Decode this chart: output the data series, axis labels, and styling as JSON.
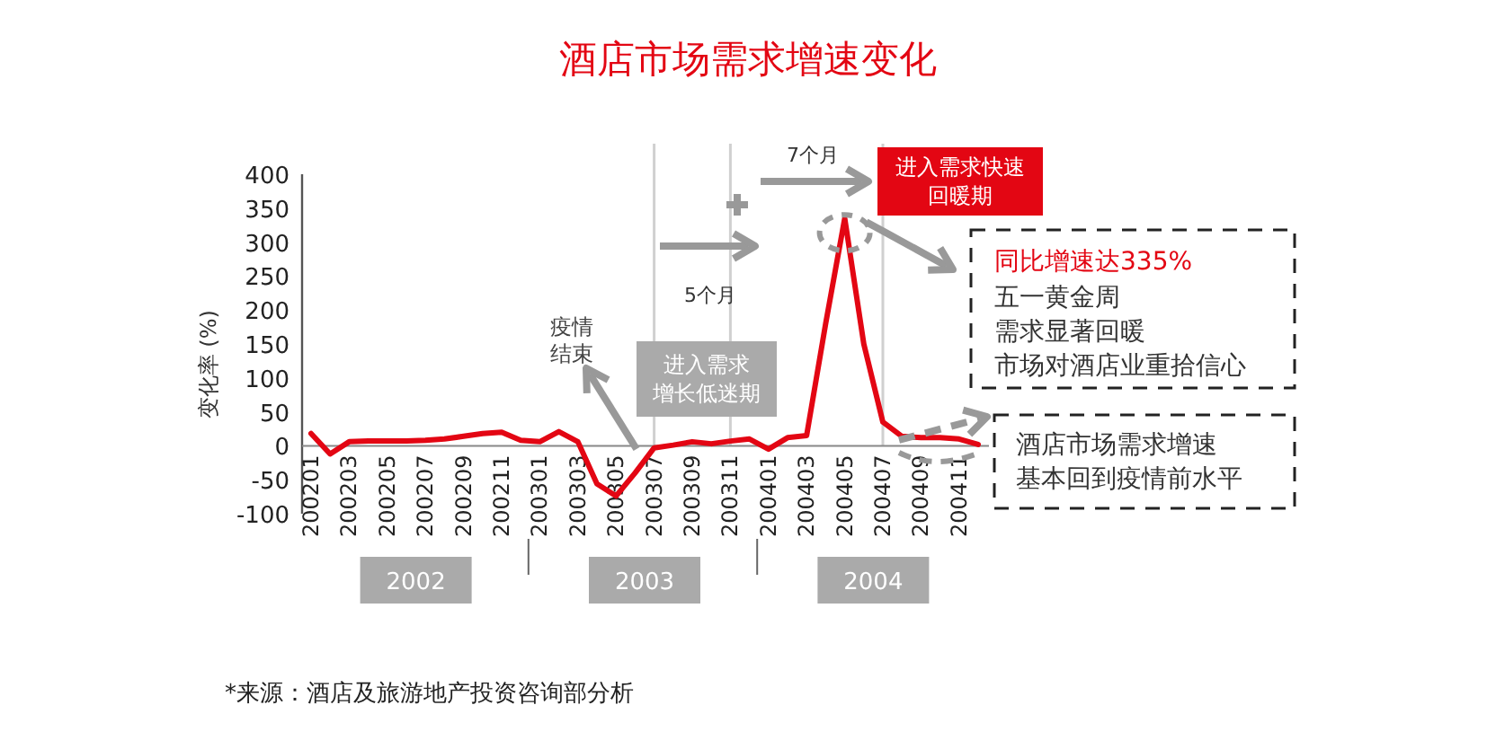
{
  "chart_data": {
    "type": "line",
    "title": "酒店市场需求增速变化",
    "ylabel": "变化率 (%)",
    "categories": [
      "200201",
      null,
      "200203",
      null,
      "200205",
      null,
      "200207",
      null,
      "200209",
      null,
      "200211",
      null,
      "200301",
      null,
      "200303",
      null,
      "200305",
      null,
      "200307",
      null,
      "200309",
      null,
      "200311",
      null,
      "200401",
      null,
      "200403",
      null,
      "200405",
      null,
      "200407",
      null,
      "200409",
      null,
      "200411",
      null
    ],
    "series": [
      {
        "color": "#e30613",
        "values": [
          18,
          -12,
          6,
          7,
          7,
          7,
          8,
          10,
          14,
          18,
          20,
          8,
          6,
          21,
          6,
          -56,
          -74,
          -40,
          -3,
          1,
          6,
          3,
          7,
          10,
          -5,
          12,
          15,
          180,
          335,
          150,
          35,
          14,
          12,
          12,
          10,
          2
        ]
      }
    ],
    "ylim": [
      -100,
      400
    ],
    "yticks": [
      -100,
      -50,
      0,
      50,
      100,
      150,
      200,
      250,
      300,
      350,
      400
    ],
    "grid": false,
    "marker": "none",
    "line_style": "solid",
    "ref_lines": [
      {
        "axis": "x",
        "value": "200307",
        "color": "#d0d0d0"
      },
      {
        "axis": "x",
        "value": "200311",
        "color": "#d0d0d0"
      },
      {
        "axis": "x",
        "value": "200407",
        "color": "#d0d0d0"
      }
    ],
    "annotations": [
      "同比增速达335%",
      "疫情",
      "结束",
      "进入需求",
      "增长低迷期",
      "5个月",
      "7个月",
      "进入需求快速",
      "回暖期",
      "五一黄金周",
      "需求显著回暖",
      "市场对酒店业重拾信心",
      "酒店市场需求增速",
      "基本回到疫情前水平",
      "2002",
      "2003",
      "2004",
      "*来源：酒店及旅游地产投资咨询部分析"
    ]
  }
}
